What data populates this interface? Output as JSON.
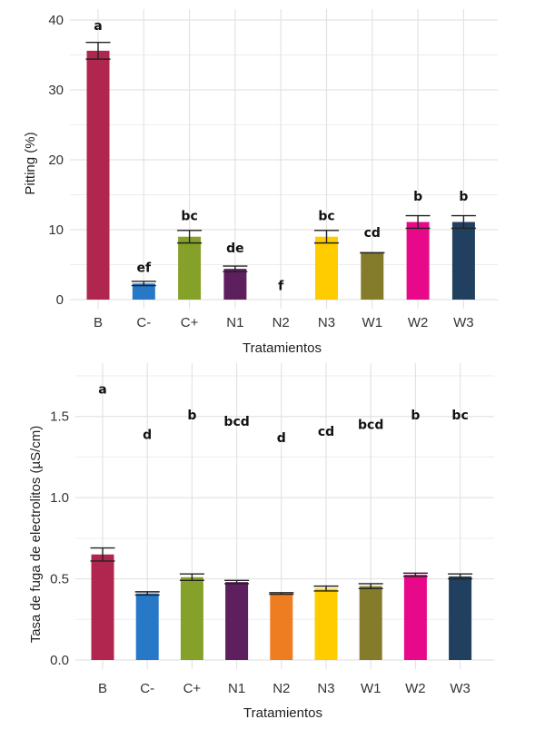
{
  "chart_data": [
    {
      "type": "bar",
      "title": "",
      "xlabel": "Tratamientos",
      "ylabel": "Pitting (%)",
      "ylim": [
        0,
        40
      ],
      "yticks": [
        0,
        10,
        20,
        30,
        40
      ],
      "ytick_labels": [
        "0",
        "10",
        "20",
        "30",
        "40"
      ],
      "grid": true,
      "categories": [
        "B",
        "C-",
        "C+",
        "N1",
        "N2",
        "N3",
        "W1",
        "W2",
        "W3"
      ],
      "values": [
        35.6,
        2.3,
        9.0,
        4.4,
        0.0,
        9.0,
        6.7,
        11.1,
        11.1
      ],
      "errors": [
        1.2,
        0.3,
        0.9,
        0.4,
        0.0,
        0.9,
        0.0,
        0.9,
        0.9
      ],
      "significance_letters": [
        "a",
        "ef",
        "bc",
        "de",
        "f",
        "bc",
        "cd",
        "b",
        "b"
      ],
      "letter_positions": [
        39.2,
        4.6,
        12.0,
        7.4,
        2.0,
        12.0,
        9.6,
        14.8,
        14.8
      ],
      "colors": [
        "#b0264f",
        "#2878c8",
        "#86a12a",
        "#5e1f5f",
        "#ee7d22",
        "#ffcc00",
        "#857c2b",
        "#e8088a",
        "#213f5e"
      ]
    },
    {
      "type": "bar",
      "title": "",
      "xlabel": "Tratamientos",
      "ylabel": "Tasa de fuga de electrolitos (µS/cm)",
      "ylim": [
        0,
        1.75
      ],
      "yticks": [
        0.0,
        0.5,
        1.0,
        1.5
      ],
      "ytick_labels": [
        "0.0",
        "0.5",
        "1.0",
        "1.5"
      ],
      "grid": true,
      "categories": [
        "B",
        "C-",
        "C+",
        "N1",
        "N2",
        "N3",
        "W1",
        "W2",
        "W3"
      ],
      "values": [
        0.65,
        0.41,
        0.51,
        0.48,
        0.41,
        0.44,
        0.455,
        0.525,
        0.515
      ],
      "errors": [
        0.04,
        0.01,
        0.02,
        0.01,
        0.005,
        0.015,
        0.015,
        0.01,
        0.015
      ],
      "significance_letters": [
        "a",
        "d",
        "b",
        "bcd",
        "d",
        "cd",
        "bcd",
        "b",
        "bc"
      ],
      "letter_positions": [
        1.67,
        1.39,
        1.51,
        1.47,
        1.37,
        1.41,
        1.45,
        1.51,
        1.51
      ],
      "colors": [
        "#b0264f",
        "#2878c8",
        "#86a12a",
        "#5e1f5f",
        "#ee7d22",
        "#ffcc00",
        "#857c2b",
        "#e8088a",
        "#213f5e"
      ]
    }
  ]
}
